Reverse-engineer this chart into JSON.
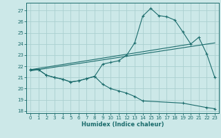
{
  "xlabel": "Humidex (Indice chaleur)",
  "bg_color": "#cce8e8",
  "grid_color": "#aad0d0",
  "line_color": "#1a6b6b",
  "xlim": [
    -0.5,
    23.5
  ],
  "ylim": [
    17.8,
    27.7
  ],
  "xticks": [
    0,
    1,
    2,
    3,
    4,
    5,
    6,
    7,
    8,
    9,
    10,
    11,
    12,
    13,
    14,
    15,
    16,
    17,
    18,
    19,
    20,
    21,
    22,
    23
  ],
  "yticks": [
    18,
    19,
    20,
    21,
    22,
    23,
    24,
    25,
    26,
    27
  ],
  "main_x": [
    0,
    1,
    2,
    3,
    4,
    5,
    6,
    7,
    8,
    9,
    10,
    11,
    12,
    13,
    14,
    15,
    16,
    17,
    18,
    19,
    20,
    21,
    22,
    23
  ],
  "main_y": [
    21.7,
    21.7,
    21.2,
    21.0,
    20.85,
    20.6,
    20.7,
    20.9,
    21.1,
    22.2,
    22.35,
    22.5,
    23.0,
    24.1,
    26.5,
    27.2,
    26.55,
    26.45,
    26.15,
    25.1,
    24.0,
    24.6,
    23.1,
    21.0
  ],
  "low_x": [
    0,
    1,
    2,
    3,
    4,
    5,
    6,
    7,
    8,
    9,
    10,
    11,
    12,
    13,
    14,
    19,
    22,
    23
  ],
  "low_y": [
    21.7,
    21.7,
    21.2,
    21.0,
    20.85,
    20.6,
    20.7,
    20.9,
    21.1,
    20.4,
    20.0,
    19.8,
    19.6,
    19.3,
    18.9,
    18.7,
    18.3,
    18.2
  ],
  "trend1_x": [
    0,
    20.0
  ],
  "trend1_y": [
    21.7,
    24.0
  ],
  "trend2_x": [
    0,
    23.0
  ],
  "trend2_y": [
    21.6,
    24.1
  ]
}
